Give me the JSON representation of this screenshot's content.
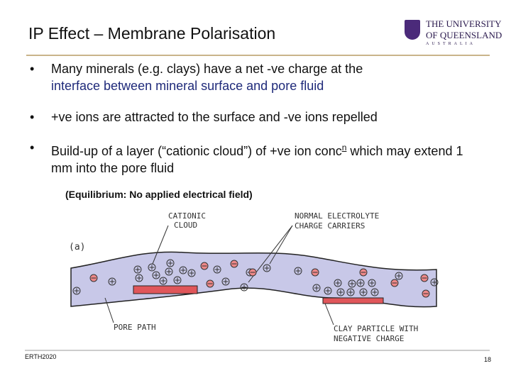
{
  "header": {
    "title": "IP Effect – Membrane Polarisation",
    "logo": {
      "line1": "THE UNIVERSITY",
      "line2": "OF QUEENSLAND",
      "line3": "AUSTRALIA"
    }
  },
  "bullets": [
    {
      "text": "Many minerals (e.g. clays) have a net -ve charge at the",
      "continuation": "interface between mineral surface and pore fluid"
    },
    {
      "text": "+ve ions are attracted to the surface and -ve ions repelled"
    },
    {
      "text": "Build-up of a layer (“cationic cloud”) of +ve ion conc",
      "superscript": "n",
      "after": " which may extend 1 mm into the pore fluid"
    }
  ],
  "figure": {
    "caption": "(Equilibrium: No applied electrical field)",
    "labels": {
      "cationic_cloud": [
        "CATIONIC",
        "CLOUD"
      ],
      "carriers": [
        "NORMAL ELECTROLYTE",
        "CHARGE CARRIERS"
      ],
      "panel": "(a)",
      "pore_path": "PORE PATH",
      "clay": [
        "CLAY PARTICLE WITH",
        "NEGATIVE CHARGE"
      ]
    }
  },
  "footer": {
    "course": "ERTH2020",
    "page": "18"
  }
}
